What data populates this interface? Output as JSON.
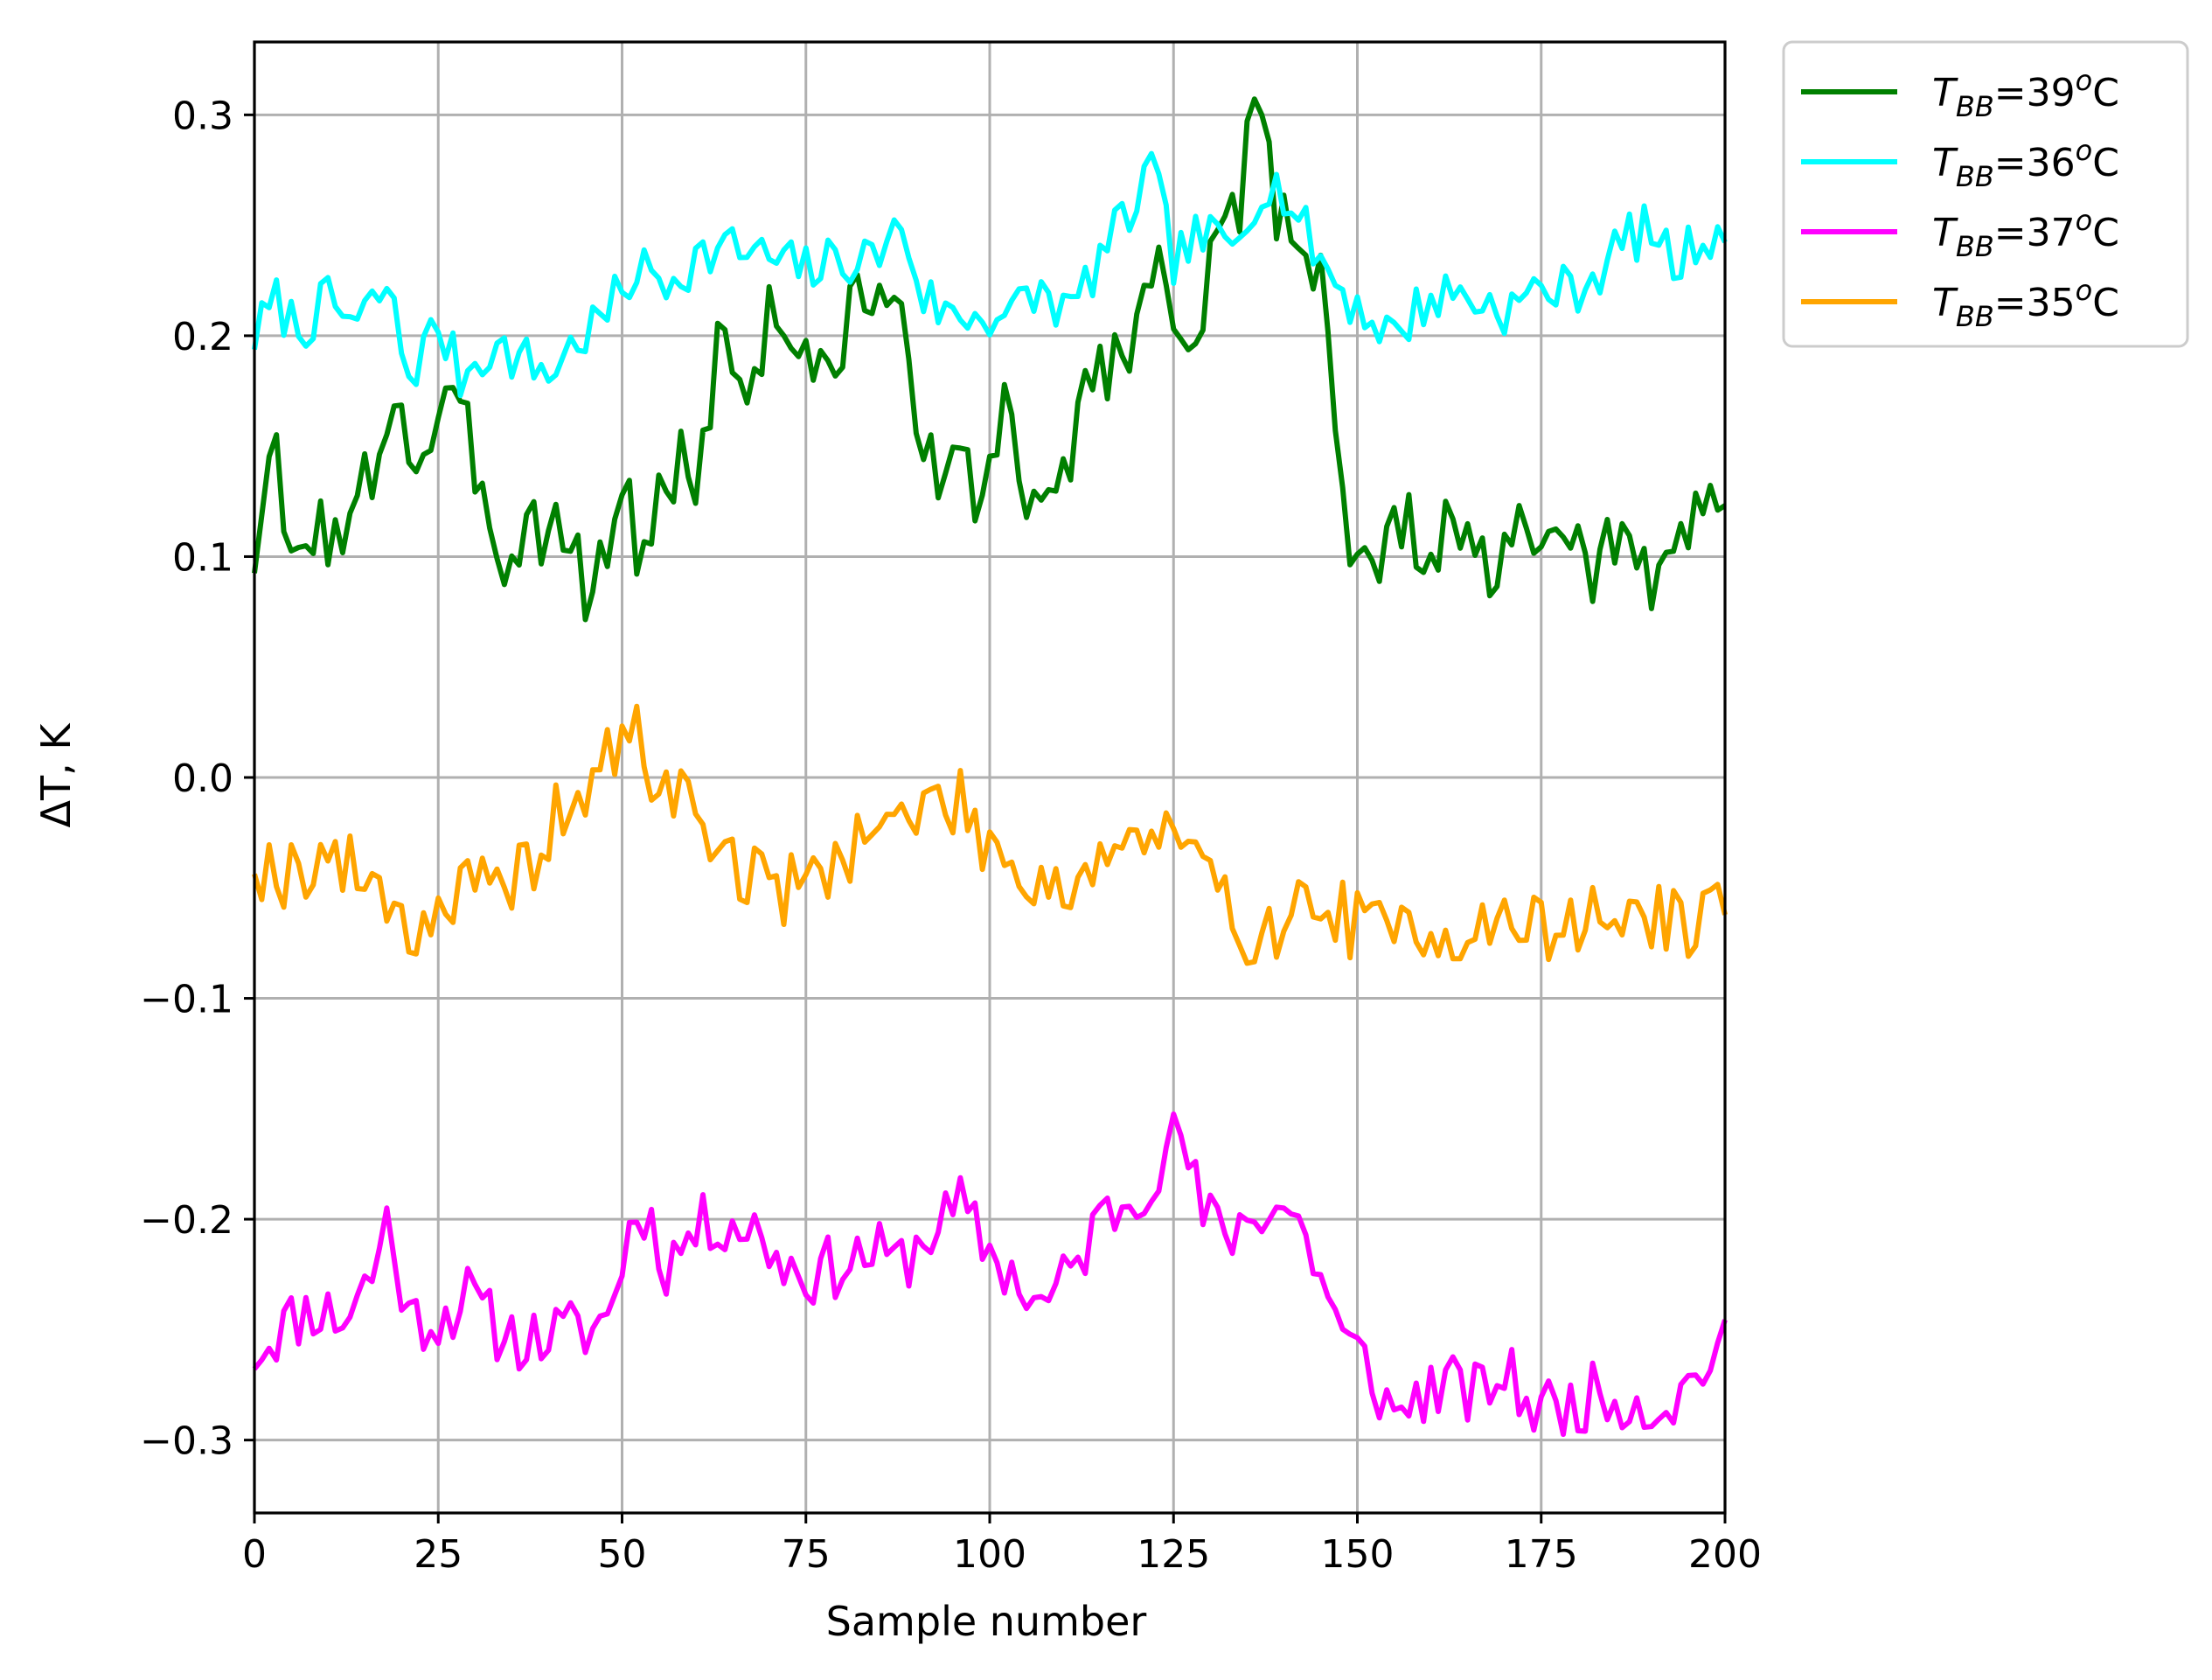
{
  "chart_data": {
    "type": "line",
    "xlabel": "Sample number",
    "ylabel": "ΔT, K",
    "xlim": [
      0,
      200
    ],
    "ylim": [
      -0.333,
      0.333
    ],
    "grid": true,
    "legend_position": "outside-top-right",
    "x_ticks": [
      0,
      25,
      50,
      75,
      100,
      125,
      150,
      175,
      200
    ],
    "x_tick_labels": [
      "0",
      "25",
      "50",
      "75",
      "100",
      "125",
      "150",
      "175",
      "200"
    ],
    "y_ticks": [
      -0.3,
      -0.2,
      -0.1,
      0.0,
      0.1,
      0.2,
      0.3
    ],
    "y_tick_labels": [
      "−0.3",
      "−0.2",
      "−0.1",
      "0.0",
      "0.1",
      "0.2",
      "0.3"
    ],
    "series": [
      {
        "name_base": "T",
        "name_sub": "BB",
        "name_value": "=39",
        "name_sup": "o",
        "name_unit": "C",
        "color": "#008000",
        "knots": [
          [
            0,
            0.103
          ],
          [
            3,
            0.144
          ],
          [
            5,
            0.088
          ],
          [
            8,
            0.12
          ],
          [
            12,
            0.1
          ],
          [
            16,
            0.14
          ],
          [
            19,
            0.176
          ],
          [
            22,
            0.142
          ],
          [
            26,
            0.165
          ],
          [
            30,
            0.145
          ],
          [
            34,
            0.1
          ],
          [
            38,
            0.118
          ],
          [
            42,
            0.112
          ],
          [
            45,
            0.085
          ],
          [
            48,
            0.108
          ],
          [
            51,
            0.125
          ],
          [
            53,
            0.095
          ],
          [
            56,
            0.137
          ],
          [
            60,
            0.14
          ],
          [
            64,
            0.205
          ],
          [
            67,
            0.17
          ],
          [
            70,
            0.21
          ],
          [
            74,
            0.2
          ],
          [
            78,
            0.172
          ],
          [
            81,
            0.213
          ],
          [
            85,
            0.225
          ],
          [
            88,
            0.195
          ],
          [
            92,
            0.152
          ],
          [
            95,
            0.133
          ],
          [
            99,
            0.13
          ],
          [
            102,
            0.165
          ],
          [
            106,
            0.112
          ],
          [
            109,
            0.128
          ],
          [
            113,
            0.18
          ],
          [
            117,
            0.188
          ],
          [
            120,
            0.21
          ],
          [
            124,
            0.23
          ],
          [
            126,
            0.205
          ],
          [
            130,
            0.225
          ],
          [
            133,
            0.245
          ],
          [
            136,
            0.3
          ],
          [
            138,
            0.27
          ],
          [
            141,
            0.25
          ],
          [
            145,
            0.232
          ],
          [
            147,
            0.17
          ],
          [
            149,
            0.1
          ],
          [
            152,
            0.093
          ],
          [
            156,
            0.112
          ],
          [
            160,
            0.108
          ],
          [
            164,
            0.105
          ],
          [
            167,
            0.095
          ],
          [
            171,
            0.102
          ],
          [
            175,
            0.108
          ],
          [
            179,
            0.092
          ],
          [
            183,
            0.1
          ],
          [
            187,
            0.102
          ],
          [
            190,
            0.085
          ],
          [
            193,
            0.108
          ],
          [
            197,
            0.12
          ],
          [
            200,
            0.128
          ]
        ],
        "seed": 3,
        "amp": 0.02
      },
      {
        "name_base": "T",
        "name_sub": "BB",
        "name_value": "=36",
        "name_sup": "o",
        "name_unit": "C",
        "color": "#00ffff",
        "knots": [
          [
            0,
            0.2
          ],
          [
            3,
            0.215
          ],
          [
            6,
            0.203
          ],
          [
            10,
            0.215
          ],
          [
            14,
            0.205
          ],
          [
            18,
            0.222
          ],
          [
            21,
            0.182
          ],
          [
            25,
            0.205
          ],
          [
            28,
            0.182
          ],
          [
            32,
            0.195
          ],
          [
            36,
            0.19
          ],
          [
            40,
            0.183
          ],
          [
            44,
            0.198
          ],
          [
            48,
            0.21
          ],
          [
            52,
            0.23
          ],
          [
            56,
            0.225
          ],
          [
            60,
            0.235
          ],
          [
            64,
            0.24
          ],
          [
            68,
            0.237
          ],
          [
            72,
            0.232
          ],
          [
            76,
            0.23
          ],
          [
            80,
            0.235
          ],
          [
            84,
            0.235
          ],
          [
            88,
            0.25
          ],
          [
            91,
            0.218
          ],
          [
            95,
            0.208
          ],
          [
            99,
            0.21
          ],
          [
            103,
            0.21
          ],
          [
            107,
            0.22
          ],
          [
            111,
            0.21
          ],
          [
            115,
            0.235
          ],
          [
            119,
            0.255
          ],
          [
            122,
            0.275
          ],
          [
            125,
            0.235
          ],
          [
            129,
            0.245
          ],
          [
            133,
            0.24
          ],
          [
            137,
            0.27
          ],
          [
            140,
            0.265
          ],
          [
            144,
            0.24
          ],
          [
            148,
            0.22
          ],
          [
            151,
            0.21
          ],
          [
            155,
            0.2
          ],
          [
            159,
            0.215
          ],
          [
            163,
            0.22
          ],
          [
            167,
            0.215
          ],
          [
            171,
            0.212
          ],
          [
            175,
            0.222
          ],
          [
            179,
            0.22
          ],
          [
            183,
            0.23
          ],
          [
            187,
            0.245
          ],
          [
            190,
            0.248
          ],
          [
            193,
            0.232
          ],
          [
            197,
            0.245
          ],
          [
            200,
            0.25
          ]
        ],
        "seed": 7,
        "amp": 0.012
      },
      {
        "name_base": "T",
        "name_sub": "BB",
        "name_value": "=37",
        "name_sup": "o",
        "name_unit": "C",
        "color": "#ff00ff",
        "knots": [
          [
            0,
            -0.26
          ],
          [
            4,
            -0.248
          ],
          [
            8,
            -0.24
          ],
          [
            12,
            -0.245
          ],
          [
            16,
            -0.225
          ],
          [
            18,
            -0.2
          ],
          [
            21,
            -0.245
          ],
          [
            25,
            -0.245
          ],
          [
            29,
            -0.235
          ],
          [
            33,
            -0.25
          ],
          [
            37,
            -0.255
          ],
          [
            41,
            -0.252
          ],
          [
            45,
            -0.25
          ],
          [
            48,
            -0.245
          ],
          [
            51,
            -0.205
          ],
          [
            53,
            -0.195
          ],
          [
            56,
            -0.22
          ],
          [
            60,
            -0.205
          ],
          [
            64,
            -0.2
          ],
          [
            68,
            -0.205
          ],
          [
            72,
            -0.22
          ],
          [
            76,
            -0.225
          ],
          [
            80,
            -0.22
          ],
          [
            84,
            -0.215
          ],
          [
            88,
            -0.22
          ],
          [
            92,
            -0.205
          ],
          [
            96,
            -0.195
          ],
          [
            100,
            -0.215
          ],
          [
            103,
            -0.225
          ],
          [
            107,
            -0.24
          ],
          [
            111,
            -0.225
          ],
          [
            115,
            -0.2
          ],
          [
            119,
            -0.19
          ],
          [
            123,
            -0.175
          ],
          [
            126,
            -0.16
          ],
          [
            129,
            -0.2
          ],
          [
            133,
            -0.205
          ],
          [
            137,
            -0.195
          ],
          [
            141,
            -0.195
          ],
          [
            145,
            -0.225
          ],
          [
            148,
            -0.255
          ],
          [
            151,
            -0.265
          ],
          [
            155,
            -0.29
          ],
          [
            158,
            -0.28
          ],
          [
            162,
            -0.275
          ],
          [
            166,
            -0.28
          ],
          [
            170,
            -0.27
          ],
          [
            174,
            -0.285
          ],
          [
            178,
            -0.285
          ],
          [
            182,
            -0.28
          ],
          [
            186,
            -0.28
          ],
          [
            190,
            -0.285
          ],
          [
            194,
            -0.28
          ],
          [
            197,
            -0.265
          ],
          [
            200,
            -0.26
          ]
        ],
        "seed": 11,
        "amp": 0.015
      },
      {
        "name_base": "T",
        "name_sub": "BB",
        "name_value": "=35",
        "name_sup": "o",
        "name_unit": "C",
        "color": "#ffa500",
        "knots": [
          [
            0,
            -0.035
          ],
          [
            3,
            -0.045
          ],
          [
            6,
            -0.04
          ],
          [
            10,
            -0.035
          ],
          [
            14,
            -0.045
          ],
          [
            18,
            -0.05
          ],
          [
            21,
            -0.07
          ],
          [
            25,
            -0.06
          ],
          [
            29,
            -0.05
          ],
          [
            33,
            -0.055
          ],
          [
            37,
            -0.04
          ],
          [
            41,
            -0.02
          ],
          [
            45,
            -0.005
          ],
          [
            49,
            0.01
          ],
          [
            52,
            0.02
          ],
          [
            55,
            -0.005
          ],
          [
            59,
            -0.01
          ],
          [
            63,
            -0.03
          ],
          [
            67,
            -0.045
          ],
          [
            71,
            -0.05
          ],
          [
            75,
            -0.05
          ],
          [
            79,
            -0.035
          ],
          [
            83,
            -0.025
          ],
          [
            87,
            -0.02
          ],
          [
            91,
            -0.015
          ],
          [
            95,
            -0.01
          ],
          [
            99,
            -0.025
          ],
          [
            103,
            -0.04
          ],
          [
            107,
            -0.045
          ],
          [
            111,
            -0.05
          ],
          [
            115,
            -0.035
          ],
          [
            119,
            -0.03
          ],
          [
            123,
            -0.025
          ],
          [
            127,
            -0.035
          ],
          [
            131,
            -0.055
          ],
          [
            135,
            -0.07
          ],
          [
            139,
            -0.065
          ],
          [
            143,
            -0.06
          ],
          [
            147,
            -0.06
          ],
          [
            151,
            -0.07
          ],
          [
            155,
            -0.07
          ],
          [
            159,
            -0.065
          ],
          [
            163,
            -0.07
          ],
          [
            167,
            -0.07
          ],
          [
            171,
            -0.065
          ],
          [
            175,
            -0.07
          ],
          [
            179,
            -0.065
          ],
          [
            183,
            -0.065
          ],
          [
            187,
            -0.06
          ],
          [
            191,
            -0.065
          ],
          [
            195,
            -0.065
          ],
          [
            200,
            -0.065
          ]
        ],
        "seed": 19,
        "amp": 0.017
      }
    ]
  }
}
